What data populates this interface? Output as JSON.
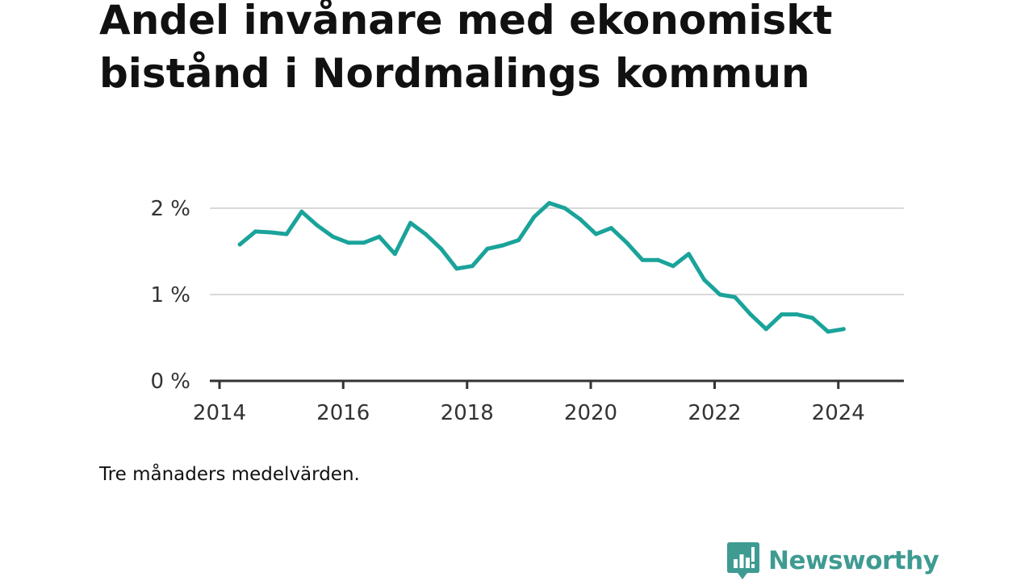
{
  "chart_data": {
    "type": "line",
    "title": "Andel invånare med ekonomiskt bistånd i Nordmalings kommun",
    "subtitle": "",
    "xlabel": "",
    "ylabel": "",
    "note": "Tre månaders medelvärden.",
    "ylim": [
      0,
      2.1
    ],
    "xlim": [
      "2014-01-01",
      "2024-09-01"
    ],
    "y_ticks": [
      {
        "value": 0,
        "label": "0 %"
      },
      {
        "value": 1,
        "label": "1 %"
      },
      {
        "value": 2,
        "label": "2 %"
      }
    ],
    "x_ticks": [
      {
        "value": "2014-01-01",
        "label": "2014"
      },
      {
        "value": "2016-01-01",
        "label": "2016"
      },
      {
        "value": "2018-01-01",
        "label": "2018"
      },
      {
        "value": "2020-01-01",
        "label": "2020"
      },
      {
        "value": "2022-01-01",
        "label": "2022"
      },
      {
        "value": "2024-01-01",
        "label": "2024"
      }
    ],
    "grid": true,
    "color": "#1aa39a",
    "series": [
      {
        "values": [
          {
            "x": "2014-05-01",
            "y": 1.58
          },
          {
            "x": "2014-08-01",
            "y": 1.73
          },
          {
            "x": "2014-11-01",
            "y": 1.72
          },
          {
            "x": "2015-02-01",
            "y": 1.7
          },
          {
            "x": "2015-05-01",
            "y": 1.96
          },
          {
            "x": "2015-08-01",
            "y": 1.8
          },
          {
            "x": "2015-11-01",
            "y": 1.67
          },
          {
            "x": "2016-02-01",
            "y": 1.6
          },
          {
            "x": "2016-05-01",
            "y": 1.6
          },
          {
            "x": "2016-08-01",
            "y": 1.67
          },
          {
            "x": "2016-11-01",
            "y": 1.47
          },
          {
            "x": "2017-02-01",
            "y": 1.83
          },
          {
            "x": "2017-05-01",
            "y": 1.7
          },
          {
            "x": "2017-08-01",
            "y": 1.53
          },
          {
            "x": "2017-11-01",
            "y": 1.3
          },
          {
            "x": "2018-02-01",
            "y": 1.33
          },
          {
            "x": "2018-05-01",
            "y": 1.53
          },
          {
            "x": "2018-08-01",
            "y": 1.57
          },
          {
            "x": "2018-11-01",
            "y": 1.63
          },
          {
            "x": "2019-02-01",
            "y": 1.9
          },
          {
            "x": "2019-05-01",
            "y": 2.06
          },
          {
            "x": "2019-08-01",
            "y": 2.0
          },
          {
            "x": "2019-11-01",
            "y": 1.87
          },
          {
            "x": "2020-02-01",
            "y": 1.7
          },
          {
            "x": "2020-05-01",
            "y": 1.77
          },
          {
            "x": "2020-08-01",
            "y": 1.6
          },
          {
            "x": "2020-11-01",
            "y": 1.4
          },
          {
            "x": "2021-02-01",
            "y": 1.4
          },
          {
            "x": "2021-05-01",
            "y": 1.33
          },
          {
            "x": "2021-08-01",
            "y": 1.47
          },
          {
            "x": "2021-11-01",
            "y": 1.17
          },
          {
            "x": "2022-02-01",
            "y": 1.0
          },
          {
            "x": "2022-05-01",
            "y": 0.97
          },
          {
            "x": "2022-08-01",
            "y": 0.77
          },
          {
            "x": "2022-11-01",
            "y": 0.6
          },
          {
            "x": "2023-02-01",
            "y": 0.77
          },
          {
            "x": "2023-05-01",
            "y": 0.77
          },
          {
            "x": "2023-08-01",
            "y": 0.73
          },
          {
            "x": "2023-11-01",
            "y": 0.57
          },
          {
            "x": "2024-02-01",
            "y": 0.6
          }
        ]
      }
    ]
  },
  "brand": {
    "name": "Newsworthy",
    "color": "#3f9b92",
    "icon": "bar-chart-speech-bubble-icon"
  }
}
